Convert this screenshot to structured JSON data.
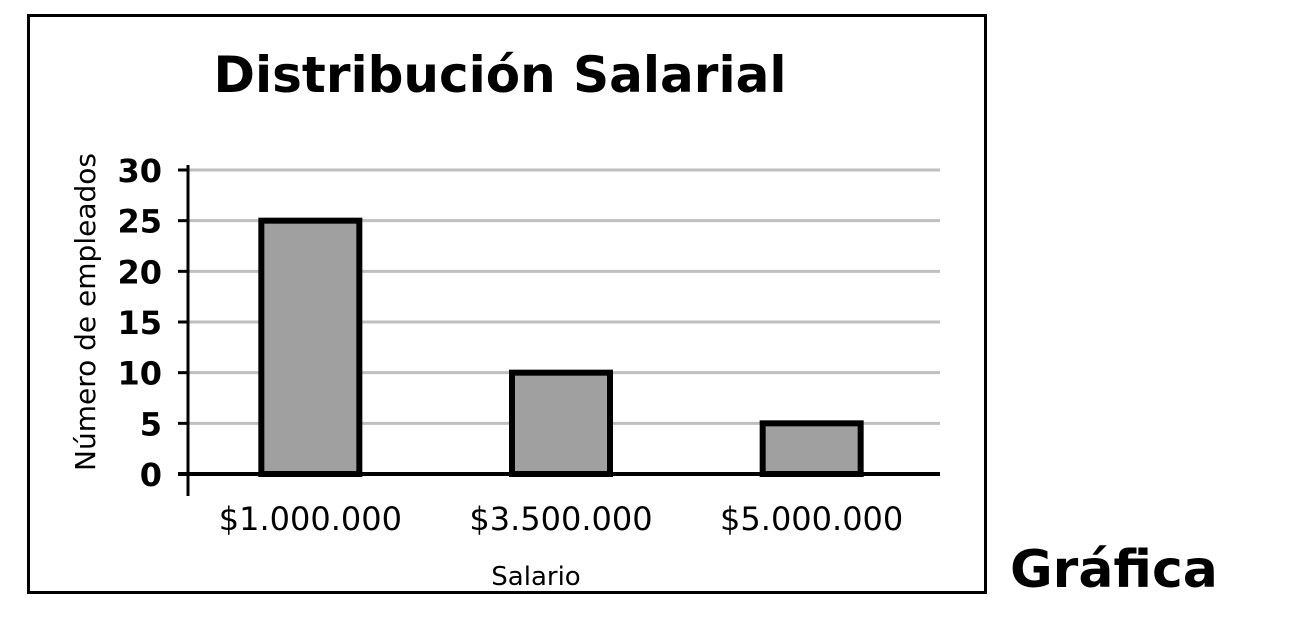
{
  "caption": "Gráfica",
  "chart_data": {
    "type": "bar",
    "title": "Distribución Salarial",
    "xlabel": "Salario",
    "ylabel": "Número de empleados",
    "categories": [
      "$1.000.000",
      "$3.500.000",
      "$5.000.000"
    ],
    "values": [
      25,
      10,
      5
    ],
    "ylim": [
      0,
      30
    ],
    "yticks": [
      0,
      5,
      10,
      15,
      20,
      25,
      30
    ],
    "grid": true,
    "legend": "none",
    "colors": {
      "bar_fill": "#a0a0a0",
      "bar_stroke": "#000000",
      "grid": "#bfbfbf"
    }
  }
}
